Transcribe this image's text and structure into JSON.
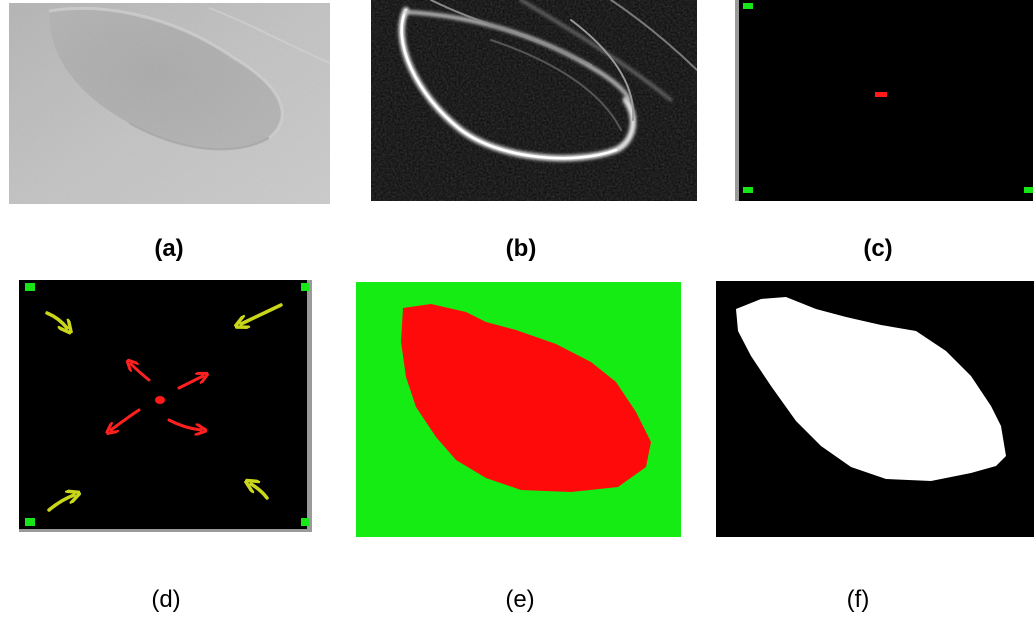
{
  "panels": [
    {
      "id": "a",
      "caption": "(a)",
      "content": "grayscale input image"
    },
    {
      "id": "b",
      "caption": "(b)",
      "content": "gradient magnitude image"
    },
    {
      "id": "c",
      "caption": "(c)",
      "content": "seed points"
    },
    {
      "id": "d",
      "caption": "(d)",
      "content": "seed growth directions"
    },
    {
      "id": "e",
      "caption": "(e)",
      "content": "region labels"
    },
    {
      "id": "f",
      "caption": "(f)",
      "content": "binary segmentation mask"
    }
  ],
  "colors": {
    "background_seed": "#19e619",
    "object_seed": "#ff1a1a",
    "background_arrow": "#c9d61a",
    "object_arrow": "#ff2020",
    "region_background": "#14ec14",
    "region_object": "#ff0a0a",
    "mask_object": "#ffffff",
    "mask_background": "#000000"
  }
}
